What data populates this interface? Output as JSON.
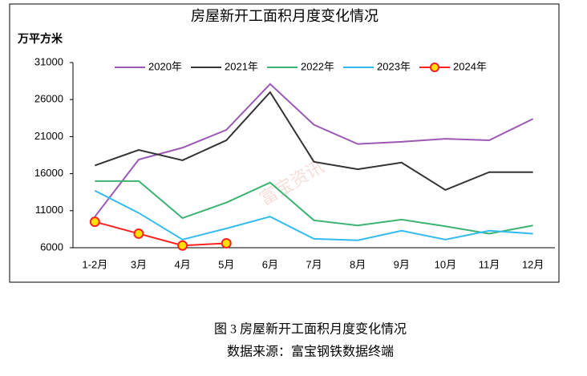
{
  "chart_data": {
    "type": "line",
    "title": "房屋新开工面积月度变化情况",
    "y_label": "万平方米",
    "watermark": "富宝资讯",
    "caption": "图 3  房屋新开工面积月度变化情况",
    "source": "数据来源：富宝钢铁数据终端",
    "categories": [
      "1-2月",
      "3月",
      "4月",
      "5月",
      "6月",
      "7月",
      "8月",
      "9月",
      "10月",
      "11月",
      "12月"
    ],
    "series": [
      {
        "name": "2020年",
        "color": "#9b59b6",
        "values": [
          10200,
          17900,
          19500,
          21900,
          28100,
          22600,
          20000,
          20300,
          20700,
          20500,
          23400
        ]
      },
      {
        "name": "2021年",
        "color": "#333333",
        "values": [
          17100,
          19200,
          17800,
          20500,
          27000,
          17600,
          16600,
          17500,
          13800,
          16200,
          16200
        ]
      },
      {
        "name": "2022年",
        "color": "#3cb371",
        "values": [
          15000,
          15000,
          10000,
          12100,
          14800,
          9700,
          9000,
          9800,
          8900,
          7900,
          9000
        ]
      },
      {
        "name": "2023年",
        "color": "#33bbee",
        "values": [
          13700,
          10700,
          7100,
          8600,
          10200,
          7200,
          7000,
          8300,
          7100,
          8300,
          7900
        ]
      },
      {
        "name": "2024年",
        "color": "#ff2020",
        "marker": "circle",
        "values": [
          9500,
          7900,
          6300,
          6600,
          null,
          null,
          null,
          null,
          null,
          null,
          null
        ]
      }
    ],
    "ylim": [
      6000,
      31000
    ],
    "yticks": [
      6000,
      11000,
      16000,
      21000,
      26000,
      31000
    ],
    "legend": "top"
  }
}
